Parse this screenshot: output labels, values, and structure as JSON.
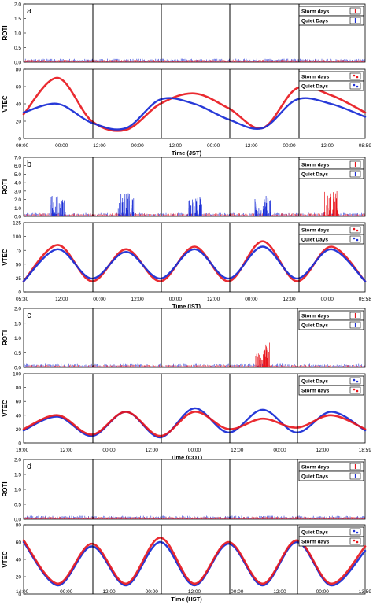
{
  "figure": {
    "panels": [
      {
        "letter": "a",
        "rot": {
          "ylabel": "ROTI",
          "ylim": [
            0,
            2
          ],
          "yticks": [
            "0.0",
            "0.5",
            "1.0",
            "1.5",
            "2.0"
          ],
          "legend": [
            "Storm days",
            "Quiet Days"
          ],
          "spikes": []
        },
        "vtec": {
          "ylabel": "VTEC",
          "ylim": [
            0,
            80
          ],
          "yticks": [
            "0",
            "20",
            "40",
            "60",
            "80"
          ],
          "legend": [
            "Storm days",
            "Quiet Days"
          ],
          "xticks": [
            "09:00",
            "00:00",
            "12:00",
            "00:00",
            "12:00",
            "00:00",
            "12:00",
            "00:00",
            "12:00",
            "08:59"
          ],
          "xlabel": "Time (JST)"
        }
      },
      {
        "letter": "b",
        "rot": {
          "ylabel": "ROTI",
          "ylim": [
            0,
            7
          ],
          "yticks": [
            "0.0",
            "1.0",
            "2.0",
            "3.0",
            "4.0",
            "5.0",
            "6.0",
            "7.0"
          ],
          "legend": [
            "Storm days",
            "Quiet Days"
          ],
          "spikes": []
        },
        "vtec": {
          "ylabel": "VTEC",
          "ylim": [
            0,
            130
          ],
          "yticks": [
            "0",
            "25",
            "50",
            "75",
            "100",
            "125"
          ],
          "legend": [
            "Storm days",
            "Quiet Days"
          ],
          "xticks": [
            "05:30",
            "12:00",
            "00:00",
            "12:00",
            "00:00",
            "12:00",
            "00:00",
            "12:00",
            "00:00",
            "05:58"
          ],
          "xlabel": "Time (IST)"
        }
      },
      {
        "letter": "c",
        "rot": {
          "ylabel": "ROTI",
          "ylim": [
            0,
            2
          ],
          "yticks": [
            "0.0",
            "0.5",
            "1.0",
            "1.5",
            "2.0"
          ],
          "legend": [
            "Storm days",
            "Quiet Days"
          ],
          "spikes": []
        },
        "vtec": {
          "ylabel": "VTEC",
          "ylim": [
            0,
            100
          ],
          "yticks": [
            "0",
            "20",
            "40",
            "60",
            "80",
            "100"
          ],
          "legend": [
            "Quiet Days",
            "Storm days"
          ],
          "xticks": [
            "19:00",
            "12:00",
            "00:00",
            "12:00",
            "00:00",
            "12:00",
            "00:00",
            "12:00",
            "18:59"
          ],
          "xlabel": "Time (COT)"
        }
      },
      {
        "letter": "d",
        "rot": {
          "ylabel": "ROTI",
          "ylim": [
            0,
            2
          ],
          "yticks": [
            "0.0",
            "0.5",
            "1.0",
            "1.5",
            "2.0"
          ],
          "legend": [
            "Storm days",
            "Quiet Days"
          ],
          "spikes": []
        },
        "vtec": {
          "ylabel": "VTEC",
          "ylim": [
            0,
            80
          ],
          "yticks": [
            "0",
            "20",
            "40",
            "60",
            "80"
          ],
          "legend": [
            "Quiet Days",
            "Storm days"
          ],
          "xticks": [
            "14:00",
            "00:00",
            "12:00",
            "00:00",
            "12:00",
            "00:00",
            "12:00",
            "00:00",
            "13:59"
          ],
          "xlabel": "Time (HST)"
        }
      }
    ],
    "colors": {
      "storm": "#e8141b",
      "quiet": "#1c2fd6",
      "divider": "#000000"
    }
  },
  "chart_data": [
    {
      "panel": "a",
      "type": "line",
      "plot": "ROTI",
      "ylim": [
        0,
        2
      ],
      "series": [
        {
          "name": "Storm days"
        },
        {
          "name": "Quiet Days"
        }
      ],
      "x": [
        "09:00",
        "00:00",
        "12:00",
        "00:00",
        "12:00",
        "00:00",
        "12:00",
        "00:00",
        "12:00",
        "08:59"
      ],
      "storm_level": 0.08,
      "quiet_level": 0.1
    },
    {
      "panel": "a",
      "type": "line",
      "plot": "VTEC",
      "xlabel": "Time (JST)",
      "ylim": [
        0,
        80
      ],
      "x_hours": [
        0,
        12,
        24,
        36,
        48,
        60,
        72,
        84,
        96,
        108,
        120
      ],
      "series": [
        {
          "name": "Storm days",
          "values": [
            28,
            70,
            20,
            10,
            40,
            52,
            35,
            12,
            58,
            50,
            30
          ]
        },
        {
          "name": "Quiet Days",
          "values": [
            30,
            40,
            18,
            12,
            45,
            40,
            22,
            12,
            45,
            40,
            25
          ]
        }
      ]
    },
    {
      "panel": "b",
      "type": "line",
      "plot": "ROTI",
      "ylim": [
        0,
        7
      ],
      "series": [
        {
          "name": "Storm days"
        },
        {
          "name": "Quiet Days"
        }
      ],
      "x": [
        "05:30",
        "12:00",
        "00:00",
        "12:00",
        "00:00",
        "12:00",
        "00:00",
        "12:00",
        "00:00",
        "05:58"
      ],
      "spikes": [
        {
          "day": 1,
          "height": 3.0,
          "series": "Quiet Days"
        },
        {
          "day": 2,
          "height": 2.8,
          "series": "Quiet Days"
        },
        {
          "day": 3,
          "height": 2.5,
          "series": "Quiet Days"
        },
        {
          "day": 4,
          "height": 2.5,
          "series": "Quiet Days"
        },
        {
          "day": 5,
          "height": 3.2,
          "series": "Storm days"
        }
      ]
    },
    {
      "panel": "b",
      "type": "line",
      "plot": "VTEC",
      "xlabel": "Time (IST)",
      "ylim": [
        0,
        130
      ],
      "x_hours": [
        0,
        12,
        24,
        36,
        48,
        60,
        72,
        84,
        96,
        108,
        120
      ],
      "series": [
        {
          "name": "Storm days",
          "values": [
            20,
            88,
            20,
            80,
            20,
            85,
            20,
            95,
            20,
            85,
            20
          ]
        },
        {
          "name": "Quiet Days",
          "values": [
            20,
            80,
            25,
            75,
            25,
            80,
            25,
            85,
            25,
            80,
            20
          ]
        }
      ]
    },
    {
      "panel": "c",
      "type": "line",
      "plot": "ROTI",
      "ylim": [
        0,
        2
      ],
      "series": [
        {
          "name": "Storm days"
        },
        {
          "name": "Quiet Days"
        }
      ],
      "x": [
        "19:00",
        "12:00",
        "00:00",
        "12:00",
        "00:00",
        "12:00",
        "00:00",
        "12:00",
        "18:59"
      ],
      "spikes": [
        {
          "day": 4,
          "height": 1.0,
          "series": "Storm days"
        }
      ]
    },
    {
      "panel": "c",
      "type": "line",
      "plot": "VTEC",
      "xlabel": "Time (COT)",
      "ylim": [
        0,
        100
      ],
      "x_hours": [
        0,
        12,
        24,
        36,
        48,
        60,
        72,
        84,
        96,
        108,
        120
      ],
      "series": [
        {
          "name": "Quiet Days",
          "values": [
            18,
            38,
            10,
            45,
            8,
            50,
            15,
            48,
            15,
            45,
            18
          ]
        },
        {
          "name": "Storm days",
          "values": [
            20,
            40,
            12,
            45,
            10,
            45,
            20,
            35,
            22,
            40,
            20
          ]
        }
      ]
    },
    {
      "panel": "d",
      "type": "line",
      "plot": "ROTI",
      "ylim": [
        0,
        2
      ],
      "series": [
        {
          "name": "Storm days"
        },
        {
          "name": "Quiet Days"
        }
      ],
      "x": [
        "14:00",
        "00:00",
        "12:00",
        "00:00",
        "12:00",
        "00:00",
        "12:00",
        "00:00",
        "13:59"
      ]
    },
    {
      "panel": "d",
      "type": "line",
      "plot": "VTEC",
      "xlabel": "Time (HST)",
      "ylim": [
        0,
        80
      ],
      "x_hours": [
        0,
        12,
        24,
        36,
        48,
        60,
        72,
        84,
        96,
        108,
        120
      ],
      "series": [
        {
          "name": "Quiet Days",
          "values": [
            60,
            10,
            55,
            10,
            60,
            10,
            58,
            10,
            60,
            10,
            50
          ]
        },
        {
          "name": "Storm days",
          "values": [
            62,
            12,
            58,
            12,
            65,
            12,
            60,
            12,
            62,
            12,
            55
          ]
        }
      ]
    }
  ]
}
